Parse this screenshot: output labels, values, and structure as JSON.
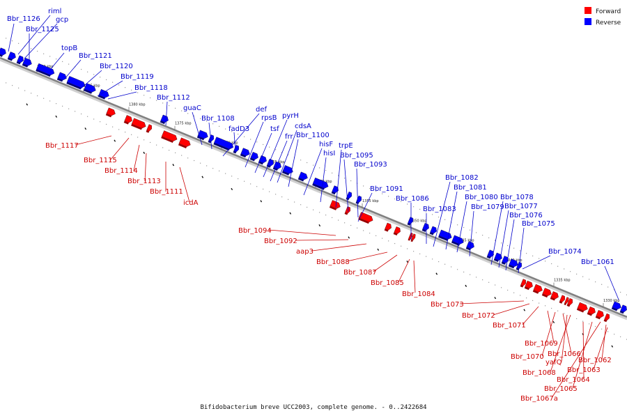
{
  "colors": {
    "forward": "#ff0000",
    "reverse": "#0000ff",
    "backbone": "#808080"
  },
  "legend": [
    {
      "label": "Forward",
      "strand": "forward"
    },
    {
      "label": "Reverse",
      "strand": "reverse"
    }
  ],
  "caption": "Bifidobacterium breve UCC2003, complete genome. - 0..2422684",
  "ticks": [
    "1390 kbp",
    "1385 kbp",
    "1380 kbp",
    "1375 kbp",
    "1370 kbp",
    "1365 kbp",
    "1360 kbp",
    "1355 kbp",
    "1350 kbp",
    "1345 kbp",
    "1340 kbp",
    "1335 kbp",
    "1330 kbp"
  ],
  "reverse_labels": [
    "Bbr_1126",
    "riml",
    "gcp",
    "Bbr_1125",
    "topB",
    "Bbr_1121",
    "Bbr_1120",
    "Bbr_1119",
    "Bbr_1118",
    "Bbr_1112",
    "guaC",
    "Bbr_1108",
    "def",
    "fadD3",
    "rpsB",
    "tsf",
    "pyrH",
    "frr",
    "cdsA",
    "Bbr_1100",
    "hisF",
    "hisI",
    "trpE",
    "Bbr_1095",
    "Bbr_1093",
    "Bbr_1091",
    "Bbr_1086",
    "Bbr_1083",
    "Bbr_1082",
    "Bbr_1081",
    "Bbr_1080",
    "Bbr_1079",
    "Bbr_1078",
    "Bbr_1077",
    "Bbr_1076",
    "Bbr_1075",
    "Bbr_1074",
    "Bbr_1061"
  ],
  "forward_labels": [
    "Bbr_1117",
    "Bbr_1115",
    "Bbr_1114",
    "Bbr_1113",
    "Bbr_1111",
    "icdA",
    "Bbr_1094",
    "Bbr_1092",
    "aap3",
    "Bbr_1088",
    "Bbr_1087",
    "Bbr_1085",
    "Bbr_1084",
    "Bbr_1073",
    "Bbr_1072",
    "Bbr_1071",
    "Bbr_1069",
    "Bbr_1070",
    "Bbr_1066",
    "yafQ",
    "Bbr_1068",
    "Bbr_1064",
    "Bbr_1065",
    "Bbr_1067a",
    "Bbr_1062",
    "Bbr_1063"
  ]
}
